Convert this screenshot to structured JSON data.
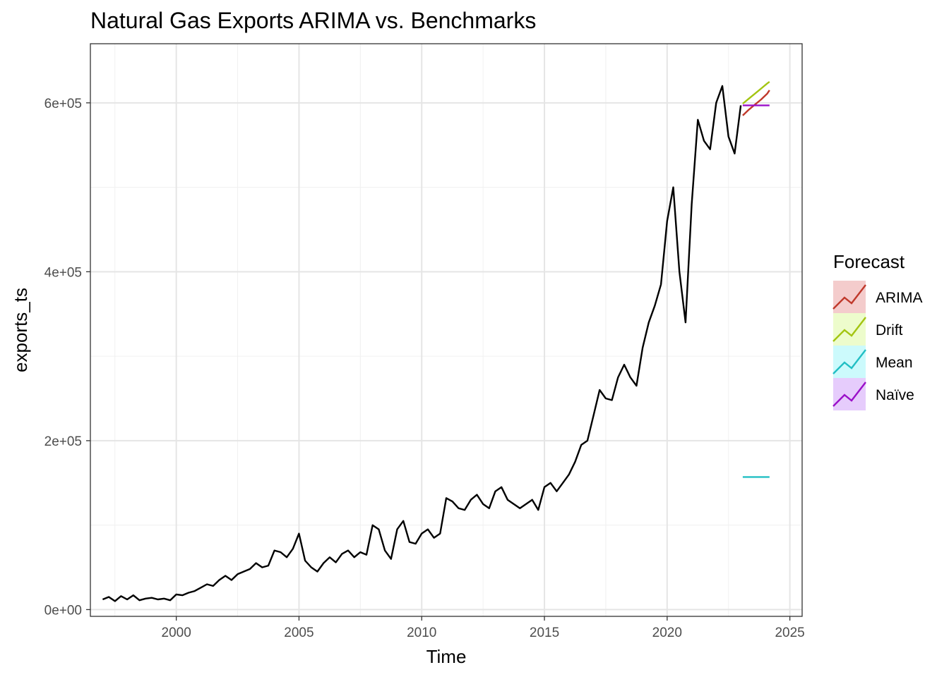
{
  "chart_data": {
    "type": "line",
    "title": "Natural Gas Exports ARIMA vs. Benchmarks",
    "xlabel": "Time",
    "ylabel": "exports_ts",
    "xlim": [
      1996.5,
      2025.5
    ],
    "ylim": [
      -8000,
      670000
    ],
    "x_ticks": [
      2000,
      2005,
      2010,
      2015,
      2020,
      2025
    ],
    "x_tick_labels": [
      "2000",
      "2005",
      "2010",
      "2015",
      "2020",
      "2025"
    ],
    "y_ticks": [
      0,
      200000,
      400000,
      600000
    ],
    "y_tick_labels": [
      "0e+00",
      "2e+05",
      "4e+05",
      "6e+05"
    ],
    "grid": true,
    "legend": {
      "title": "Forecast",
      "placement": "right",
      "items": [
        {
          "label": "ARIMA",
          "color": "#c0392b",
          "fill": "#f4cccc"
        },
        {
          "label": "Drift",
          "color": "#a3c511",
          "fill": "#edfccc"
        },
        {
          "label": "Mean",
          "color": "#22bfc4",
          "fill": "#ccfafc"
        },
        {
          "label": "Naïve",
          "color": "#9b10c9",
          "fill": "#e6ccfc"
        }
      ]
    },
    "observed": {
      "color": "#000000",
      "x": [
        1997.0,
        1997.25,
        1997.5,
        1997.75,
        1998.0,
        1998.25,
        1998.5,
        1998.75,
        1999.0,
        1999.25,
        1999.5,
        1999.75,
        2000.0,
        2000.25,
        2000.5,
        2000.75,
        2001.0,
        2001.25,
        2001.5,
        2001.75,
        2002.0,
        2002.25,
        2002.5,
        2002.75,
        2003.0,
        2003.25,
        2003.5,
        2003.75,
        2004.0,
        2004.25,
        2004.5,
        2004.75,
        2005.0,
        2005.25,
        2005.5,
        2005.75,
        2006.0,
        2006.25,
        2006.5,
        2006.75,
        2007.0,
        2007.25,
        2007.5,
        2007.75,
        2008.0,
        2008.25,
        2008.5,
        2008.75,
        2009.0,
        2009.25,
        2009.5,
        2009.75,
        2010.0,
        2010.25,
        2010.5,
        2010.75,
        2011.0,
        2011.25,
        2011.5,
        2011.75,
        2012.0,
        2012.25,
        2012.5,
        2012.75,
        2013.0,
        2013.25,
        2013.5,
        2013.75,
        2014.0,
        2014.25,
        2014.5,
        2014.75,
        2015.0,
        2015.25,
        2015.5,
        2015.75,
        2016.0,
        2016.25,
        2016.5,
        2016.75,
        2017.0,
        2017.25,
        2017.5,
        2017.75,
        2018.0,
        2018.25,
        2018.5,
        2018.75,
        2019.0,
        2019.25,
        2019.5,
        2019.75,
        2020.0,
        2020.25,
        2020.5,
        2020.75,
        2021.0,
        2021.25,
        2021.5,
        2021.75,
        2022.0,
        2022.25,
        2022.5,
        2022.75,
        2023.0
      ],
      "y": [
        12000,
        15000,
        10000,
        16000,
        12000,
        17000,
        11000,
        13000,
        14000,
        12000,
        13000,
        11000,
        18000,
        17000,
        20000,
        22000,
        26000,
        30000,
        28000,
        35000,
        40000,
        35000,
        42000,
        45000,
        48000,
        55000,
        50000,
        52000,
        70000,
        68000,
        62000,
        72000,
        90000,
        58000,
        50000,
        45000,
        55000,
        62000,
        56000,
        66000,
        70000,
        62000,
        68000,
        65000,
        100000,
        95000,
        70000,
        60000,
        95000,
        105000,
        80000,
        78000,
        90000,
        95000,
        85000,
        90000,
        132000,
        128000,
        120000,
        118000,
        130000,
        136000,
        125000,
        120000,
        140000,
        145000,
        130000,
        125000,
        120000,
        125000,
        130000,
        118000,
        145000,
        150000,
        140000,
        150000,
        160000,
        175000,
        195000,
        200000,
        230000,
        260000,
        250000,
        248000,
        275000,
        290000,
        275000,
        265000,
        310000,
        340000,
        360000,
        385000,
        460000,
        500000,
        400000,
        340000,
        480000,
        580000,
        555000,
        545000,
        600000,
        620000,
        560000,
        540000,
        597000
      ]
    },
    "forecasts": {
      "x": [
        2023.08,
        2023.33,
        2023.58,
        2023.83,
        2024.08,
        2024.17
      ],
      "series": [
        {
          "name": "ARIMA",
          "color": "#c0392b",
          "values": [
            585000,
            592000,
            598000,
            604000,
            611000,
            615000
          ]
        },
        {
          "name": "Drift",
          "color": "#a3c511",
          "values": [
            599000,
            605000,
            611000,
            617000,
            623000,
            625000
          ]
        },
        {
          "name": "Mean",
          "color": "#22bfc4",
          "values": [
            157000,
            157000,
            157000,
            157000,
            157000,
            157000
          ]
        },
        {
          "name": "Naïve",
          "color": "#9b10c9",
          "values": [
            597000,
            597000,
            597000,
            597000,
            597000,
            597000
          ]
        }
      ]
    }
  }
}
